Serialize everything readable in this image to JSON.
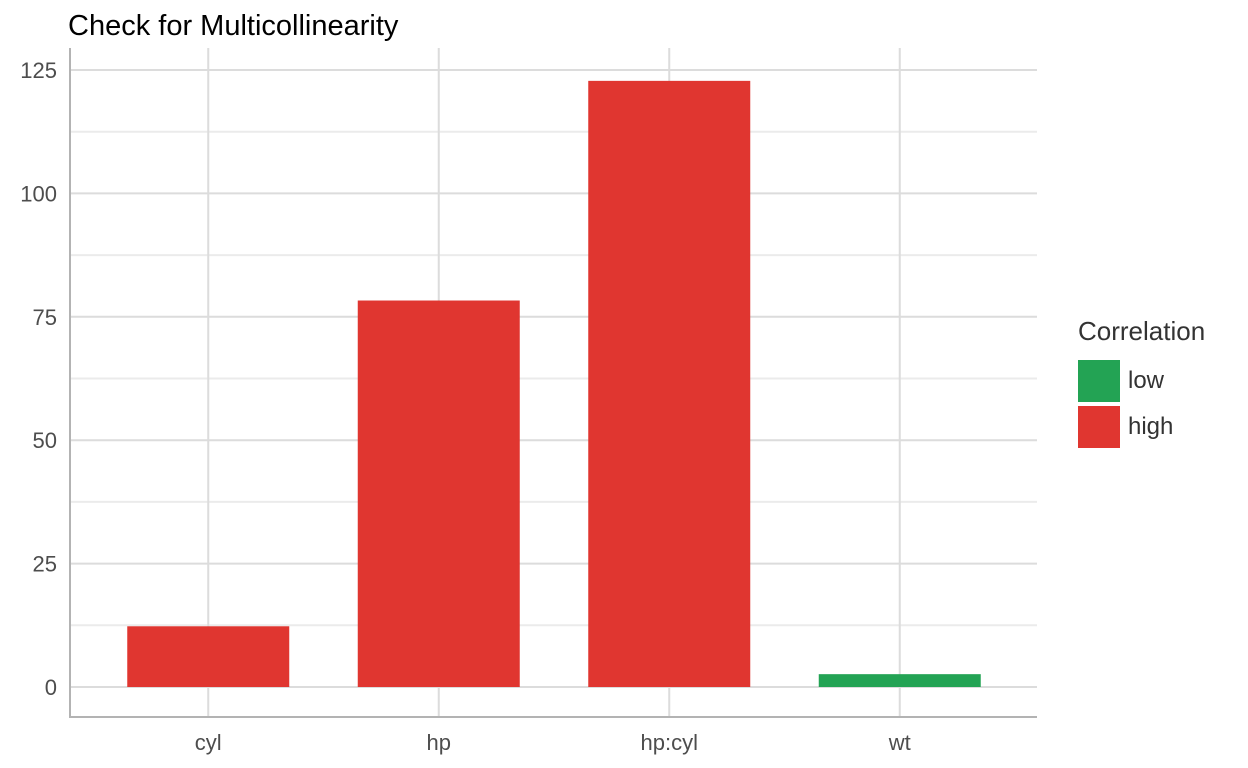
{
  "chart_data": {
    "type": "bar",
    "title": "Check for Multicollinearity",
    "xlabel": "",
    "ylabel": "",
    "categories": [
      "cyl",
      "hp",
      "hp:cyl",
      "wt"
    ],
    "values": [
      12.3,
      78.3,
      122.8,
      2.6
    ],
    "groups": [
      "high",
      "high",
      "high",
      "low"
    ],
    "ylim": [
      0,
      125
    ],
    "yticks": [
      0,
      25,
      50,
      75,
      100,
      125
    ],
    "grid": true,
    "legend": {
      "title": "Correlation",
      "placement": "right",
      "entries": [
        {
          "label": "low",
          "color": "#23a354"
        },
        {
          "label": "high",
          "color": "#e03630"
        }
      ]
    }
  }
}
